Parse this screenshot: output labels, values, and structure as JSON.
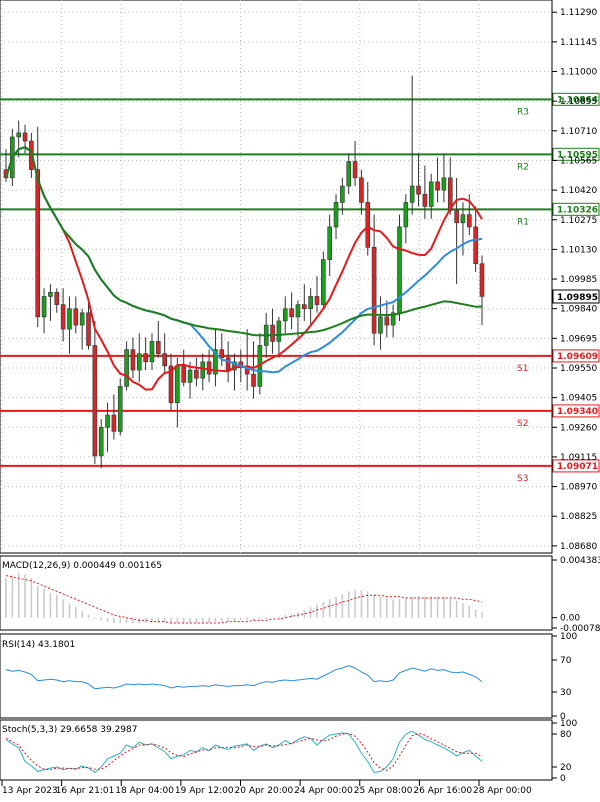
{
  "chart_data": {
    "type": "candlestick",
    "instrument_note": "",
    "price_axis_ticks": [
      "1.11290",
      "1.11145",
      "1.11000",
      "1.10855",
      "1.10710",
      "1.10565",
      "1.10420",
      "1.10275",
      "1.10130",
      "1.09985",
      "1.09840",
      "1.09695",
      "1.09550",
      "1.09405",
      "1.09260",
      "1.09115",
      "1.08970",
      "1.08825",
      "1.08680"
    ],
    "price_range": [
      1.0865,
      1.1134
    ],
    "current_price": "1.09895",
    "levels": [
      {
        "name": "R3",
        "value": "1.10864",
        "color": "#1b7f1b"
      },
      {
        "name": "R2",
        "value": "1.10595",
        "color": "#1b7f1b"
      },
      {
        "name": "R1",
        "value": "1.10326",
        "color": "#1b7f1b"
      },
      {
        "name": "S1",
        "value": "1.09609",
        "color": "#e31a1c"
      },
      {
        "name": "S2",
        "value": "1.09340",
        "color": "#e31a1c"
      },
      {
        "name": "S3",
        "value": "1.09071",
        "color": "#e31a1c"
      }
    ],
    "x_labels": [
      "13 Apr 2023",
      "16 Apr 21:01",
      "18 Apr 04:00",
      "19 Apr 12:00",
      "20 Apr 20:00",
      "24 Apr 00:00",
      "25 Apr 08:00",
      "26 Apr 16:00",
      "28 Apr 00:00"
    ],
    "candles": [
      [
        1.1052,
        1.1062,
        1.1046,
        1.1048
      ],
      [
        1.1048,
        1.1072,
        1.1044,
        1.1068
      ],
      [
        1.1068,
        1.1076,
        1.1058,
        1.107
      ],
      [
        1.107,
        1.1074,
        1.106,
        1.1066
      ],
      [
        1.1066,
        1.107,
        1.1048,
        1.1052
      ],
      [
        1.1052,
        1.1073,
        1.0975,
        1.098
      ],
      [
        1.098,
        1.0994,
        1.0972,
        1.099
      ],
      [
        1.099,
        1.0996,
        1.0978,
        1.0992
      ],
      [
        1.0992,
        1.0994,
        1.0982,
        1.0986
      ],
      [
        1.0986,
        1.0994,
        1.0968,
        1.0974
      ],
      [
        1.0974,
        1.099,
        1.0962,
        1.0984
      ],
      [
        1.0984,
        1.099,
        1.0972,
        1.0976
      ],
      [
        1.0976,
        1.0984,
        1.0964,
        1.0982
      ],
      [
        1.0982,
        1.0988,
        1.0964,
        1.0966
      ],
      [
        1.0966,
        1.0978,
        1.0908,
        1.0912
      ],
      [
        1.0912,
        1.093,
        1.0906,
        1.0926
      ],
      [
        1.0926,
        1.0938,
        1.0914,
        1.0932
      ],
      [
        1.0932,
        1.0942,
        1.092,
        1.0924
      ],
      [
        1.0924,
        1.095,
        1.0922,
        1.0946
      ],
      [
        1.0946,
        1.0968,
        1.0944,
        1.0964
      ],
      [
        1.0964,
        1.097,
        1.095,
        1.0954
      ],
      [
        1.0954,
        1.0972,
        1.0948,
        1.0962
      ],
      [
        1.0962,
        1.097,
        1.0954,
        1.0958
      ],
      [
        1.0958,
        1.0972,
        1.0954,
        1.0968
      ],
      [
        1.0968,
        1.0978,
        1.096,
        1.0962
      ],
      [
        1.0962,
        1.0972,
        1.0952,
        1.0956
      ],
      [
        1.0956,
        1.0962,
        1.0934,
        1.0938
      ],
      [
        1.0938,
        1.096,
        1.0926,
        1.0956
      ],
      [
        1.0956,
        1.0964,
        1.0946,
        1.0948
      ],
      [
        1.0948,
        1.0958,
        1.094,
        1.0954
      ],
      [
        1.0954,
        1.096,
        1.0946,
        1.095
      ],
      [
        1.095,
        1.0962,
        1.0944,
        1.0958
      ],
      [
        1.0958,
        1.0964,
        1.0948,
        1.0952
      ],
      [
        1.0952,
        1.0974,
        1.0946,
        1.0964
      ],
      [
        1.0964,
        1.0972,
        1.0956,
        1.096
      ],
      [
        1.096,
        1.0968,
        1.0948,
        1.0954
      ],
      [
        1.0954,
        1.0962,
        1.0944,
        1.0958
      ],
      [
        1.0958,
        1.0964,
        1.0948,
        1.0956
      ],
      [
        1.0956,
        1.0974,
        1.0944,
        1.0952
      ],
      [
        1.0952,
        1.0968,
        1.094,
        1.0946
      ],
      [
        1.0946,
        1.0972,
        1.0942,
        1.0966
      ],
      [
        1.0966,
        1.0982,
        1.096,
        1.0976
      ],
      [
        1.0976,
        1.0984,
        1.0962,
        1.0968
      ],
      [
        1.0968,
        1.098,
        1.096,
        1.0978
      ],
      [
        1.0978,
        1.099,
        1.0972,
        1.0984
      ],
      [
        1.0984,
        1.0992,
        1.0974,
        1.098
      ],
      [
        1.098,
        1.0988,
        1.097,
        1.0986
      ],
      [
        1.0986,
        1.0996,
        1.0978,
        1.0984
      ],
      [
        1.0984,
        1.0994,
        1.0976,
        1.099
      ],
      [
        1.099,
        1.1,
        1.0982,
        1.0986
      ],
      [
        1.0986,
        1.1012,
        1.0984,
        1.1008
      ],
      [
        1.1008,
        1.103,
        1.1,
        1.1024
      ],
      [
        1.1024,
        1.104,
        1.1018,
        1.1036
      ],
      [
        1.1036,
        1.1048,
        1.103,
        1.1044
      ],
      [
        1.1044,
        1.106,
        1.104,
        1.1056
      ],
      [
        1.1056,
        1.1066,
        1.1044,
        1.1048
      ],
      [
        1.1048,
        1.1052,
        1.103,
        1.1036
      ],
      [
        1.1036,
        1.1046,
        1.101,
        1.1014
      ],
      [
        1.1014,
        1.103,
        1.0966,
        1.0972
      ],
      [
        1.0972,
        1.099,
        1.0964,
        1.098
      ],
      [
        1.098,
        1.0988,
        1.097,
        1.0976
      ],
      [
        1.0976,
        1.0986,
        1.097,
        1.0982
      ],
      [
        1.0982,
        1.103,
        1.0978,
        1.1024
      ],
      [
        1.1024,
        1.104,
        1.1016,
        1.1036
      ],
      [
        1.1036,
        1.1098,
        1.103,
        1.1044
      ],
      [
        1.1044,
        1.106,
        1.1034,
        1.104
      ],
      [
        1.104,
        1.1054,
        1.1028,
        1.1034
      ],
      [
        1.1034,
        1.105,
        1.1028,
        1.1046
      ],
      [
        1.1046,
        1.1058,
        1.1036,
        1.1042
      ],
      [
        1.1042,
        1.106,
        1.1036,
        1.1048
      ],
      [
        1.1048,
        1.1058,
        1.103,
        1.1032
      ],
      [
        1.1032,
        1.1048,
        1.0996,
        1.1026
      ],
      [
        1.1026,
        1.1036,
        1.101,
        1.103
      ],
      [
        1.103,
        1.104,
        1.102,
        1.1024
      ],
      [
        1.1024,
        1.1034,
        1.1002,
        1.1006
      ],
      [
        1.1006,
        1.101,
        1.0976,
        1.099
      ]
    ],
    "indicators": [
      {
        "name": "MA red",
        "color": "#e31a1c"
      },
      {
        "name": "MA blue",
        "color": "#2b8ce0"
      },
      {
        "name": "MA green",
        "color": "#1b7f1b"
      }
    ],
    "panels": [
      {
        "name": "MACD",
        "label": "MACD(12,26,9) 0.000449 0.001165",
        "ticks": [
          "0.004383",
          "0.00",
          "-0.000784"
        ]
      },
      {
        "name": "RSI",
        "label": "RSI(14) 43.1801",
        "ticks": [
          "100",
          "70",
          "30",
          "0"
        ]
      },
      {
        "name": "Stoch",
        "label": "Stoch(5,3,3) 29.6658 39.2987",
        "ticks": [
          "100",
          "80",
          "20",
          "0"
        ]
      }
    ],
    "macd_hist": [
      0.003,
      0.0032,
      0.0034,
      0.0033,
      0.003,
      0.0024,
      0.0022,
      0.0019,
      0.0017,
      0.0014,
      0.0011,
      0.0008,
      0.0005,
      0.0002,
      -0.0001,
      -0.0002,
      -0.0003,
      -0.0004,
      -0.0004,
      -0.0004,
      -0.0004,
      -0.0004,
      -0.0004,
      -0.0004,
      -0.0004,
      -0.0004,
      -0.0004,
      -0.0004,
      -0.0004,
      -0.0004,
      -0.0004,
      -0.0004,
      -0.0004,
      -0.0003,
      -0.0003,
      -0.0003,
      -0.0003,
      -0.0002,
      -0.0002,
      -0.0002,
      -0.0001,
      -0.0001,
      0.0,
      0.0001,
      0.0002,
      0.0003,
      0.0004,
      0.0006,
      0.0008,
      0.001,
      0.0012,
      0.0014,
      0.0016,
      0.0018,
      0.002,
      0.0021,
      0.0021,
      0.002,
      0.0018,
      0.0016,
      0.0015,
      0.0014,
      0.0014,
      0.0015,
      0.0016,
      0.0016,
      0.0016,
      0.0016,
      0.0016,
      0.0016,
      0.0015,
      0.0013,
      0.0011,
      0.0009,
      0.0006,
      0.0004
    ],
    "macd_signal": [
      0.0032,
      0.0031,
      0.003,
      0.0029,
      0.0028,
      0.0026,
      0.0024,
      0.0022,
      0.002,
      0.0018,
      0.0016,
      0.0014,
      0.0012,
      0.001,
      0.0008,
      0.0006,
      0.0004,
      0.0002,
      0.0001,
      0.0,
      -0.0001,
      -0.0002,
      -0.0002,
      -0.0003,
      -0.0003,
      -0.0003,
      -0.0004,
      -0.0004,
      -0.0004,
      -0.0004,
      -0.0004,
      -0.0004,
      -0.0004,
      -0.0004,
      -0.0004,
      -0.0003,
      -0.0003,
      -0.0003,
      -0.0003,
      -0.0002,
      -0.0002,
      -0.0002,
      -0.0001,
      -0.0001,
      0.0,
      0.0001,
      0.0002,
      0.0003,
      0.0004,
      0.0006,
      0.0007,
      0.0009,
      0.001,
      0.0012,
      0.0013,
      0.0015,
      0.0016,
      0.0017,
      0.0017,
      0.0017,
      0.0016,
      0.0016,
      0.0016,
      0.0015,
      0.0015,
      0.0015,
      0.0015,
      0.0015,
      0.0015,
      0.0015,
      0.0015,
      0.0015,
      0.0014,
      0.0014,
      0.0013,
      0.0012
    ],
    "rsi": [
      58,
      56,
      57,
      55,
      52,
      44,
      45,
      46,
      45,
      43,
      44,
      43,
      43,
      40,
      34,
      35,
      36,
      35,
      37,
      40,
      39,
      40,
      39,
      40,
      39,
      38,
      35,
      37,
      36,
      37,
      37,
      38,
      37,
      39,
      38,
      37,
      38,
      38,
      39,
      38,
      41,
      43,
      42,
      44,
      45,
      44,
      45,
      46,
      47,
      46,
      50,
      54,
      58,
      60,
      63,
      60,
      55,
      51,
      43,
      44,
      43,
      45,
      54,
      57,
      60,
      58,
      56,
      59,
      57,
      58,
      55,
      54,
      55,
      52,
      49,
      43
    ],
    "stoch_k": [
      70,
      62,
      55,
      30,
      22,
      12,
      15,
      18,
      20,
      15,
      18,
      16,
      22,
      18,
      10,
      20,
      35,
      40,
      45,
      60,
      55,
      65,
      60,
      62,
      55,
      48,
      35,
      40,
      42,
      50,
      48,
      55,
      50,
      60,
      55,
      52,
      58,
      60,
      62,
      50,
      58,
      62,
      55,
      60,
      68,
      62,
      70,
      75,
      72,
      60,
      70,
      78,
      80,
      82,
      80,
      65,
      45,
      30,
      10,
      12,
      20,
      35,
      65,
      80,
      85,
      78,
      70,
      66,
      60,
      55,
      48,
      40,
      46,
      50,
      40,
      30
    ],
    "stoch_d": [
      72,
      66,
      60,
      45,
      32,
      22,
      16,
      15,
      18,
      18,
      17,
      17,
      19,
      19,
      16,
      16,
      22,
      32,
      40,
      48,
      53,
      60,
      60,
      62,
      59,
      55,
      46,
      41,
      39,
      44,
      47,
      51,
      51,
      55,
      55,
      56,
      55,
      57,
      60,
      57,
      57,
      60,
      58,
      59,
      61,
      63,
      66,
      69,
      72,
      69,
      67,
      70,
      76,
      80,
      81,
      76,
      63,
      47,
      28,
      18,
      14,
      22,
      40,
      60,
      77,
      81,
      78,
      71,
      66,
      60,
      54,
      48,
      45,
      45,
      45,
      39
    ]
  }
}
